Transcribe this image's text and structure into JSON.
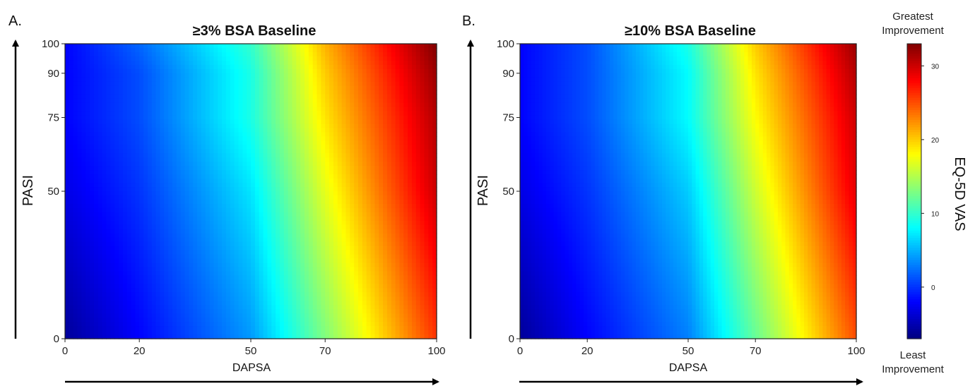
{
  "chart_data": [
    {
      "type": "heatmap",
      "panel_label": "A.",
      "title": "≥3% BSA Baseline",
      "xlabel": "DAPSA",
      "ylabel": "PASI",
      "xlim": [
        0,
        100
      ],
      "ylim": [
        0,
        100
      ],
      "x_ticks": [
        0,
        20,
        50,
        70,
        100
      ],
      "y_ticks": [
        0,
        50,
        75,
        90,
        100
      ],
      "grid": false,
      "value_range": [
        -7,
        33
      ],
      "x": [
        0,
        20,
        50,
        70,
        100
      ],
      "y": [
        0,
        50,
        75,
        90,
        100
      ],
      "z": [
        [
          -6,
          -2,
          4,
          13,
          26
        ],
        [
          -3,
          0,
          7,
          17,
          30
        ],
        [
          -2,
          1,
          9,
          19,
          31
        ],
        [
          -2,
          1,
          9,
          20,
          32
        ],
        [
          -2,
          2,
          10,
          21,
          33
        ]
      ]
    },
    {
      "type": "heatmap",
      "panel_label": "B.",
      "title": "≥10% BSA Baseline",
      "xlabel": "DAPSA",
      "ylabel": "PASI",
      "xlim": [
        0,
        100
      ],
      "ylim": [
        0,
        100
      ],
      "x_ticks": [
        0,
        20,
        50,
        70,
        100
      ],
      "y_ticks": [
        0,
        50,
        75,
        90,
        100
      ],
      "grid": false,
      "value_range": [
        -7,
        33
      ],
      "x": [
        0,
        20,
        50,
        70,
        100
      ],
      "y": [
        0,
        50,
        75,
        90,
        100
      ],
      "z": [
        [
          -6,
          -2,
          3,
          12,
          25
        ],
        [
          -3,
          0,
          6,
          16,
          29
        ],
        [
          -2,
          1,
          8,
          18,
          30
        ],
        [
          -2,
          1,
          8,
          19,
          31
        ],
        [
          -2,
          1,
          9,
          20,
          32
        ]
      ]
    }
  ],
  "colorbar": {
    "label": "EQ-5D VAS",
    "top_label_line1": "Greatest",
    "top_label_line2": "Improvement",
    "bottom_label_line1": "Least",
    "bottom_label_line2": "Improvement",
    "ticks": [
      0,
      10,
      20,
      30
    ],
    "range": [
      -7,
      33
    ],
    "colormap": "jet"
  }
}
